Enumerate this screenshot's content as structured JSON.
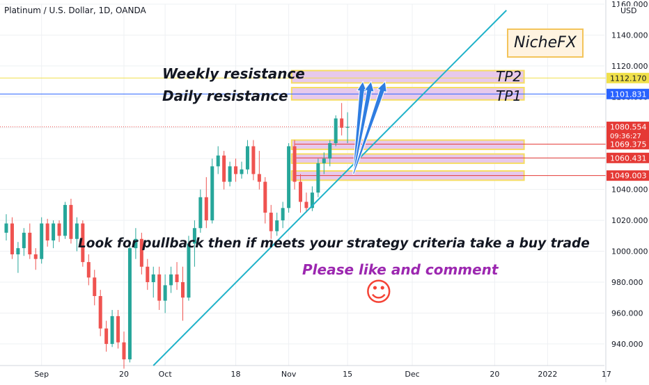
{
  "header": {
    "symbol_title": "Platinum / U.S. Dollar, 1D, OANDA"
  },
  "currency": "USD",
  "colors": {
    "up": "#26a69a",
    "down": "#ef5350",
    "trendline": "#1fb2c9",
    "arrow": "#2f7de1",
    "zone_fill": "#e7c9ec",
    "zone_border": "#f6dd63",
    "weekly_line": "#f0e04a",
    "daily_line": "#2962ff",
    "support_line": "#e53935",
    "price_line": "#ef5350",
    "grid": "#eef0f3",
    "purple_text": "#9c27b0",
    "smiley": "#f44336"
  },
  "chart_data": {
    "type": "candlestick",
    "ylim": [
      926,
      1160
    ],
    "y_ticks": [
      "1160.000",
      "1140.000",
      "1120.000",
      "1100.000",
      "1080.000",
      "1060.000",
      "1040.000",
      "1020.000",
      "1000.000",
      "980.000",
      "960.000",
      "940.000"
    ],
    "x_tick_labels": [
      "Sep",
      "20",
      "Oct",
      "18",
      "Nov",
      "15",
      "Dec",
      "20",
      "2022",
      "17"
    ],
    "x_tick_index": [
      6,
      20,
      27,
      39,
      48,
      58,
      69,
      83,
      92,
      102
    ],
    "candles": [
      [
        1012,
        1024,
        1007,
        1018
      ],
      [
        1018,
        1022,
        995,
        998
      ],
      [
        998,
        1006,
        986,
        1002
      ],
      [
        1002,
        1015,
        997,
        1012
      ],
      [
        1012,
        1018,
        995,
        998
      ],
      [
        998,
        1002,
        988,
        995
      ],
      [
        995,
        1022,
        992,
        1018
      ],
      [
        1018,
        1021,
        1003,
        1007
      ],
      [
        1007,
        1020,
        1002,
        1018
      ],
      [
        1018,
        1020,
        1006,
        1010
      ],
      [
        1010,
        1032,
        1008,
        1030
      ],
      [
        1030,
        1034,
        1005,
        1008
      ],
      [
        1008,
        1022,
        1000,
        1018
      ],
      [
        1018,
        1020,
        990,
        993
      ],
      [
        993,
        998,
        978,
        983
      ],
      [
        983,
        988,
        965,
        971
      ],
      [
        971,
        975,
        945,
        950
      ],
      [
        950,
        955,
        935,
        940
      ],
      [
        940,
        962,
        938,
        958
      ],
      [
        958,
        962,
        937,
        941
      ],
      [
        941,
        948,
        924,
        930
      ],
      [
        930,
        1005,
        928,
        1002
      ],
      [
        1002,
        1015,
        995,
        1008
      ],
      [
        1008,
        1012,
        985,
        990
      ],
      [
        990,
        995,
        975,
        980
      ],
      [
        980,
        990,
        970,
        985
      ],
      [
        985,
        990,
        962,
        968
      ],
      [
        968,
        985,
        960,
        978
      ],
      [
        978,
        990,
        973,
        985
      ],
      [
        985,
        993,
        975,
        980
      ],
      [
        980,
        990,
        955,
        970
      ],
      [
        970,
        1010,
        968,
        1005
      ],
      [
        1005,
        1020,
        990,
        1015
      ],
      [
        1015,
        1040,
        1012,
        1035
      ],
      [
        1035,
        1048,
        1015,
        1020
      ],
      [
        1020,
        1060,
        1018,
        1055
      ],
      [
        1055,
        1068,
        1050,
        1062
      ],
      [
        1062,
        1065,
        1040,
        1045
      ],
      [
        1045,
        1058,
        1042,
        1055
      ],
      [
        1055,
        1060,
        1045,
        1050
      ],
      [
        1050,
        1058,
        1047,
        1053
      ],
      [
        1053,
        1072,
        1050,
        1068
      ],
      [
        1068,
        1072,
        1046,
        1050
      ],
      [
        1050,
        1065,
        1040,
        1045
      ],
      [
        1045,
        1048,
        1018,
        1025
      ],
      [
        1025,
        1030,
        1008,
        1013
      ],
      [
        1013,
        1025,
        1010,
        1020
      ],
      [
        1020,
        1032,
        1015,
        1028
      ],
      [
        1028,
        1070,
        1025,
        1068
      ],
      [
        1068,
        1072,
        1040,
        1045
      ],
      [
        1045,
        1050,
        1025,
        1032
      ],
      [
        1032,
        1038,
        1025,
        1028
      ],
      [
        1028,
        1042,
        1026,
        1038
      ],
      [
        1038,
        1060,
        1035,
        1057
      ],
      [
        1057,
        1064,
        1050,
        1060
      ],
      [
        1060,
        1072,
        1055,
        1070
      ],
      [
        1070,
        1088,
        1068,
        1086
      ],
      [
        1086,
        1096,
        1075,
        1080
      ],
      [
        1080,
        1090,
        1070,
        1080.554
      ]
    ],
    "horizontal_lines": [
      {
        "name": "weekly-resistance",
        "price": 1112.17
      },
      {
        "name": "daily-resistance",
        "price": 1101.831
      },
      {
        "name": "support-1",
        "price": 1069.375
      },
      {
        "name": "support-2",
        "price": 1060.431
      },
      {
        "name": "support-3",
        "price": 1049.003
      }
    ],
    "price_labels": [
      {
        "name": "weekly-resistance",
        "text": "1112.170",
        "price": 1112.17
      },
      {
        "name": "daily-resistance",
        "text": "1101.831",
        "price": 1101.831
      },
      {
        "name": "last-price",
        "text": "1080.554",
        "sub": "09:36:27",
        "price": 1080.554
      },
      {
        "name": "support-1",
        "text": "1069.375",
        "price": 1069.375
      },
      {
        "name": "support-2",
        "text": "1060.431",
        "price": 1060.431
      },
      {
        "name": "support-3",
        "text": "1049.003",
        "price": 1049.003
      }
    ],
    "zones": [
      {
        "name": "weekly-zone",
        "i0": 48.5,
        "i1": 88,
        "low": 1109,
        "high": 1117
      },
      {
        "name": "daily-zone",
        "i0": 48.5,
        "i1": 88,
        "low": 1098,
        "high": 1106
      },
      {
        "name": "support-zone-1",
        "i0": 48.5,
        "i1": 88,
        "low": 1066,
        "high": 1072
      },
      {
        "name": "support-zone-2",
        "i0": 48.5,
        "i1": 88,
        "low": 1057,
        "high": 1063
      },
      {
        "name": "support-zone-3",
        "i0": 48.5,
        "i1": 88,
        "low": 1046,
        "high": 1052
      }
    ],
    "trendline": {
      "i0": 25,
      "p0": 926,
      "i1": 85,
      "p1": 1156
    },
    "arrows": [
      {
        "i0": 59,
        "p0": 1050,
        "i1": 60.6,
        "p1": 1110
      },
      {
        "i0": 59,
        "p0": 1050,
        "i1": 62.0,
        "p1": 1110
      },
      {
        "i0": 59,
        "p0": 1050,
        "i1": 64.4,
        "p1": 1110
      }
    ]
  },
  "annotations": {
    "brand": "NicheFX",
    "weekly_resistance": "Weekly resistance",
    "daily_resistance": "Daily resistance",
    "tp2": "TP2",
    "tp1": "TP1",
    "strategy_note": "Look for pullback then if meets your strategy criteria take a buy trade",
    "like_note": "Please like and comment",
    "smiley": "☺"
  }
}
